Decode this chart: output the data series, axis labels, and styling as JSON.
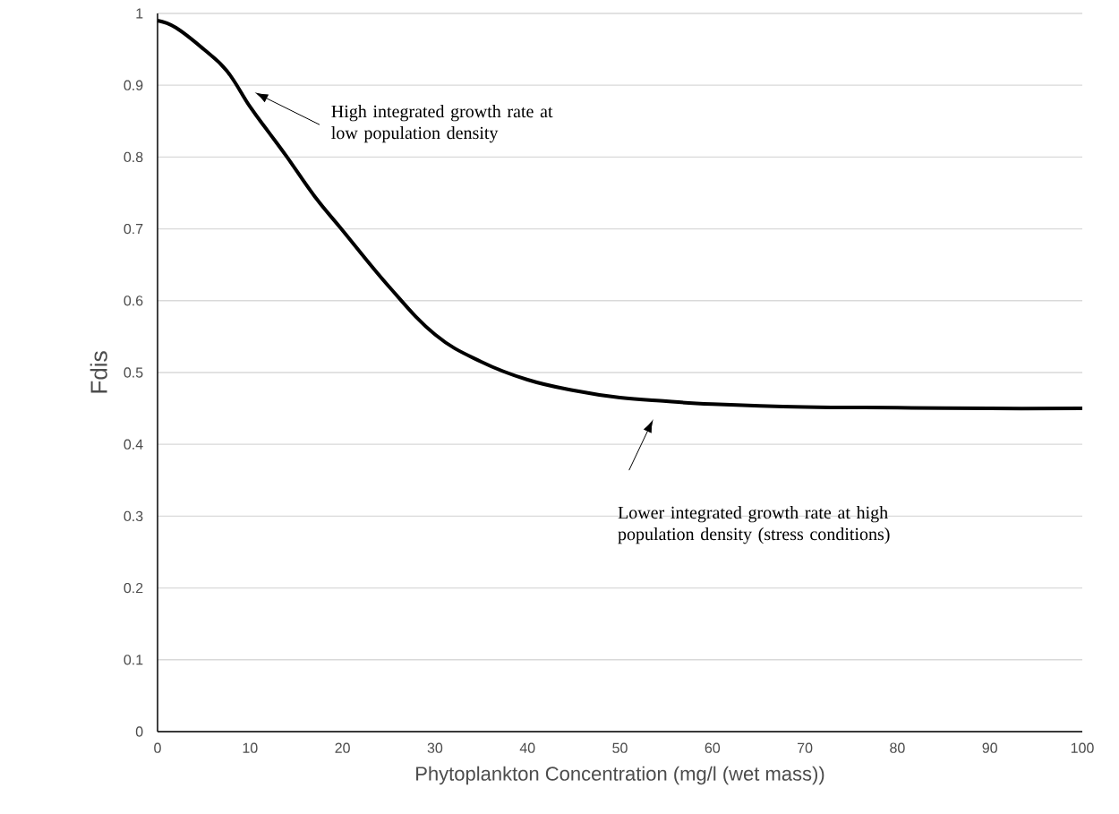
{
  "chart_data": {
    "type": "line",
    "xlabel": "Phytoplankton Concentration (mg/l (wet mass))",
    "ylabel": "Fdis",
    "x": [
      0,
      2,
      5,
      7.5,
      10,
      12,
      14,
      17,
      20,
      25,
      30,
      35,
      40,
      45,
      50,
      55,
      60,
      70,
      80,
      90,
      100
    ],
    "series": [
      {
        "color": "#000000",
        "values": [
          0.99,
          0.98,
          0.95,
          0.92,
          0.87,
          0.835,
          0.8,
          0.745,
          0.698,
          0.62,
          0.553,
          0.515,
          0.49,
          0.475,
          0.465,
          0.46,
          0.456,
          0.452,
          0.451,
          0.45,
          0.45
        ]
      }
    ],
    "xlim": [
      0,
      100
    ],
    "ylim": [
      0,
      1
    ],
    "xticks": [
      0,
      10,
      20,
      30,
      40,
      50,
      60,
      70,
      80,
      90,
      100
    ],
    "yticks": [
      0,
      0.1,
      0.2,
      0.3,
      0.4,
      0.5,
      0.6,
      0.7,
      0.8,
      0.9,
      1
    ],
    "grid": "y",
    "marker": "none",
    "line_style": "solid",
    "annotations": [
      "High integrated growth rate at low population density",
      "Lower integrated growth rate at high population density (stress conditions)"
    ]
  }
}
